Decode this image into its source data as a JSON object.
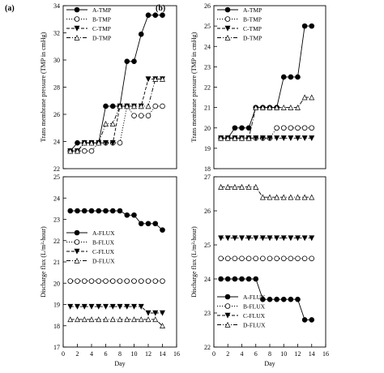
{
  "chart_data": [
    {
      "panel": "(a)",
      "type": "line",
      "xlabel": "",
      "ylabel": "Trans membrane pressure (TMP in cmHg)",
      "xlim": [
        0,
        16
      ],
      "ylim": [
        22,
        34
      ],
      "yticks": [
        22,
        24,
        26,
        28,
        30,
        32,
        34
      ],
      "legend_position": "top-left",
      "x": [
        1,
        2,
        3,
        4,
        5,
        6,
        7,
        8,
        9,
        10,
        11,
        12,
        13,
        14
      ],
      "series": [
        {
          "name": "A-TMP",
          "marker": "filled-circle",
          "dash": "solid",
          "values": [
            23.3,
            23.9,
            23.9,
            23.9,
            23.9,
            26.6,
            26.6,
            26.6,
            29.9,
            29.9,
            31.9,
            33.3,
            33.3,
            33.3
          ]
        },
        {
          "name": "B-TMP",
          "marker": "open-circle",
          "dash": "dotted",
          "values": [
            23.3,
            23.3,
            23.3,
            23.3,
            23.9,
            23.9,
            23.9,
            23.9,
            26.6,
            25.9,
            25.9,
            25.9,
            26.6,
            26.6
          ]
        },
        {
          "name": "C-TMP",
          "marker": "filled-triangle-down",
          "dash": "dashed",
          "values": [
            23.3,
            23.3,
            23.9,
            23.9,
            23.9,
            23.9,
            23.9,
            26.6,
            26.6,
            26.6,
            26.6,
            28.6,
            28.6,
            28.6
          ]
        },
        {
          "name": "D-TMP",
          "marker": "open-triangle-up",
          "dash": "dashdot",
          "values": [
            23.3,
            23.3,
            23.9,
            23.9,
            23.9,
            25.3,
            25.3,
            26.6,
            26.6,
            26.6,
            26.6,
            26.6,
            28.6,
            28.6
          ]
        }
      ]
    },
    {
      "panel": "(b)",
      "type": "line",
      "xlabel": "",
      "ylabel": "Trans membrane pressure (TMP in cmHg)",
      "xlim": [
        0,
        16
      ],
      "ylim": [
        18,
        26
      ],
      "yticks": [
        18,
        19,
        20,
        21,
        22,
        23,
        24,
        25,
        26
      ],
      "legend_position": "top-left",
      "x": [
        1,
        2,
        3,
        4,
        5,
        6,
        7,
        8,
        9,
        10,
        11,
        12,
        13,
        14
      ],
      "series": [
        {
          "name": "A-TMP",
          "marker": "filled-circle",
          "dash": "solid",
          "values": [
            19.5,
            19.5,
            20.0,
            20.0,
            20.0,
            21.0,
            21.0,
            21.0,
            21.0,
            22.5,
            22.5,
            22.5,
            25.0,
            25.0
          ]
        },
        {
          "name": "B-TMP",
          "marker": "open-circle",
          "dash": "dotted",
          "values": [
            19.5,
            19.5,
            19.5,
            19.5,
            19.5,
            19.5,
            19.5,
            19.5,
            20.0,
            20.0,
            20.0,
            20.0,
            20.0,
            20.0
          ]
        },
        {
          "name": "C-TMP",
          "marker": "filled-triangle-down",
          "dash": "dashed",
          "values": [
            19.5,
            19.5,
            19.5,
            19.5,
            19.5,
            19.5,
            19.5,
            19.5,
            19.5,
            19.5,
            19.5,
            19.5,
            19.5,
            19.5
          ]
        },
        {
          "name": "D-TMP",
          "marker": "open-triangle-up",
          "dash": "dashdot",
          "values": [
            19.5,
            19.5,
            19.5,
            19.5,
            19.5,
            21.0,
            21.0,
            21.0,
            21.0,
            21.0,
            21.0,
            21.0,
            21.5,
            21.5
          ]
        }
      ]
    },
    {
      "panel": "",
      "type": "line",
      "xlabel": "Day",
      "ylabel": "Discharge flux (L/m²-hour)",
      "xlim": [
        0,
        16
      ],
      "ylim": [
        17,
        25
      ],
      "yticks": [
        17,
        18,
        19,
        20,
        21,
        22,
        23,
        24,
        25
      ],
      "xticks": [
        0,
        2,
        4,
        6,
        8,
        10,
        12,
        14,
        16
      ],
      "legend_position": "center-left",
      "x": [
        1,
        2,
        3,
        4,
        5,
        6,
        7,
        8,
        9,
        10,
        11,
        12,
        13,
        14
      ],
      "series": [
        {
          "name": "A-FLUX",
          "marker": "filled-circle",
          "dash": "solid",
          "values": [
            23.4,
            23.4,
            23.4,
            23.4,
            23.4,
            23.4,
            23.4,
            23.4,
            23.2,
            23.2,
            22.8,
            22.8,
            22.8,
            22.5
          ]
        },
        {
          "name": "B-FLUX",
          "marker": "open-circle",
          "dash": "dotted",
          "values": [
            20.1,
            20.1,
            20.1,
            20.1,
            20.1,
            20.1,
            20.1,
            20.1,
            20.1,
            20.1,
            20.1,
            20.1,
            20.1,
            20.1
          ]
        },
        {
          "name": "C-FLUX",
          "marker": "filled-triangle-down",
          "dash": "dashed",
          "values": [
            18.9,
            18.9,
            18.9,
            18.9,
            18.9,
            18.9,
            18.9,
            18.9,
            18.9,
            18.9,
            18.9,
            18.6,
            18.6,
            18.6
          ]
        },
        {
          "name": "D-FLUX",
          "marker": "open-triangle-up",
          "dash": "dashdot",
          "values": [
            18.3,
            18.3,
            18.3,
            18.3,
            18.3,
            18.3,
            18.3,
            18.3,
            18.3,
            18.3,
            18.3,
            18.3,
            18.3,
            18.0
          ]
        }
      ]
    },
    {
      "panel": "",
      "type": "line",
      "xlabel": "Day",
      "ylabel": "Discharge flux (L/m²-hour)",
      "xlim": [
        0,
        16
      ],
      "ylim": [
        22,
        27
      ],
      "yticks": [
        22,
        23,
        24,
        25,
        26,
        27
      ],
      "xticks": [
        0,
        2,
        4,
        6,
        8,
        10,
        12,
        14,
        16
      ],
      "legend_position": "bottom-left",
      "x": [
        1,
        2,
        3,
        4,
        5,
        6,
        7,
        8,
        9,
        10,
        11,
        12,
        13,
        14
      ],
      "series": [
        {
          "name": "A-FLUX",
          "marker": "filled-circle",
          "dash": "solid",
          "values": [
            24.0,
            24.0,
            24.0,
            24.0,
            24.0,
            24.0,
            23.4,
            23.4,
            23.4,
            23.4,
            23.4,
            23.4,
            22.8,
            22.8
          ]
        },
        {
          "name": "B-FLUX",
          "marker": "open-circle",
          "dash": "dotted",
          "values": [
            24.6,
            24.6,
            24.6,
            24.6,
            24.6,
            24.6,
            24.6,
            24.6,
            24.6,
            24.6,
            24.6,
            24.6,
            24.6,
            24.6
          ]
        },
        {
          "name": "C-FLUX",
          "marker": "filled-triangle-down",
          "dash": "dashed",
          "values": [
            25.2,
            25.2,
            25.2,
            25.2,
            25.2,
            25.2,
            25.2,
            25.2,
            25.2,
            25.2,
            25.2,
            25.2,
            25.2,
            25.2
          ]
        },
        {
          "name": "D-FLUX",
          "marker": "open-triangle-up",
          "dash": "dashdot",
          "values": [
            26.7,
            26.7,
            26.7,
            26.7,
            26.7,
            26.7,
            26.4,
            26.4,
            26.4,
            26.4,
            26.4,
            26.4,
            26.4,
            26.4
          ]
        }
      ]
    }
  ]
}
